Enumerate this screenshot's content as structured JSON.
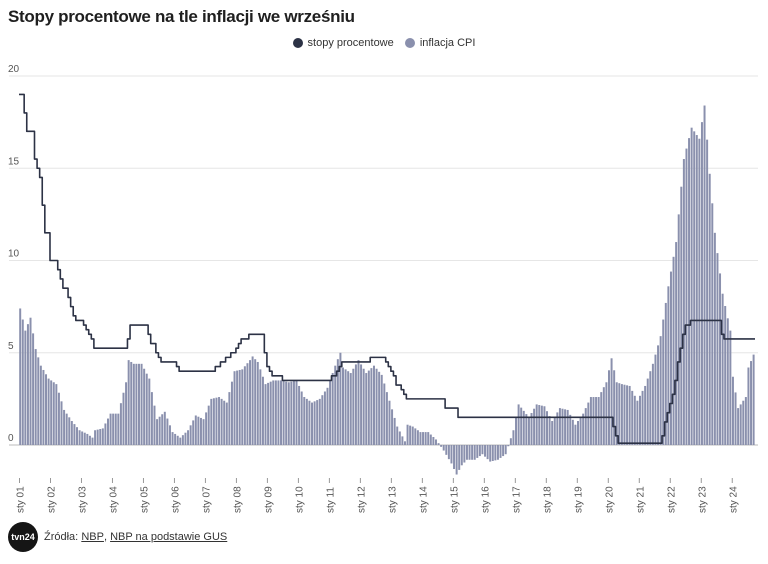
{
  "title": "Stopy procentowe na tle inflacji we wrześniu",
  "legend": {
    "rates_label": "stopy procentowe",
    "cpi_label": "inflacja CPI",
    "rates_color": "#2c3245",
    "cpi_color": "#8a90ad"
  },
  "footer": {
    "logo_text": "tvn24",
    "sources_label": "Źródła:",
    "link1": "NBP",
    "separator": ",",
    "link2": "NBP na podstawie GUS"
  },
  "chart_data": {
    "type": "bar+line",
    "title": "Stopy procentowe na tle inflacji we wrześniu",
    "xlabel": "",
    "ylabel": "",
    "ylim": [
      -2,
      20
    ],
    "yticks": [
      0,
      5,
      10,
      15,
      20
    ],
    "grid": true,
    "legend_position": "top",
    "x_tick_labels": [
      "sty 01",
      "sty 02",
      "sty 03",
      "sty 04",
      "sty 05",
      "sty 06",
      "sty 07",
      "sty 08",
      "sty 09",
      "sty 10",
      "sty 11",
      "sty 12",
      "sty 13",
      "sty 14",
      "sty 15",
      "sty 16",
      "sty 17",
      "sty 18",
      "sty 19",
      "sty 20",
      "sty 21",
      "sty 22",
      "sty 23",
      "sty 24"
    ],
    "x_range": [
      "2001-01",
      "2024-09"
    ],
    "series": [
      {
        "name": "inflacja CPI",
        "kind": "bar",
        "color": "#8a90ad",
        "keypoints": [
          [
            "2001-01",
            7.4
          ],
          [
            "2001-03",
            6.2
          ],
          [
            "2001-05",
            6.9
          ],
          [
            "2001-07",
            5.2
          ],
          [
            "2001-09",
            4.3
          ],
          [
            "2001-12",
            3.6
          ],
          [
            "2002-03",
            3.3
          ],
          [
            "2002-06",
            1.9
          ],
          [
            "2002-09",
            1.3
          ],
          [
            "2002-12",
            0.8
          ],
          [
            "2003-03",
            0.6
          ],
          [
            "2003-05",
            0.4
          ],
          [
            "2003-06",
            0.8
          ],
          [
            "2003-09",
            0.9
          ],
          [
            "2003-12",
            1.7
          ],
          [
            "2004-03",
            1.7
          ],
          [
            "2004-06",
            3.4
          ],
          [
            "2004-07",
            4.6
          ],
          [
            "2004-09",
            4.4
          ],
          [
            "2004-12",
            4.4
          ],
          [
            "2005-03",
            3.6
          ],
          [
            "2005-06",
            1.4
          ],
          [
            "2005-09",
            1.8
          ],
          [
            "2005-12",
            0.7
          ],
          [
            "2006-03",
            0.4
          ],
          [
            "2006-06",
            0.8
          ],
          [
            "2006-09",
            1.6
          ],
          [
            "2006-12",
            1.4
          ],
          [
            "2007-03",
            2.5
          ],
          [
            "2007-06",
            2.6
          ],
          [
            "2007-09",
            2.3
          ],
          [
            "2007-12",
            4.0
          ],
          [
            "2008-03",
            4.1
          ],
          [
            "2008-06",
            4.6
          ],
          [
            "2008-07",
            4.8
          ],
          [
            "2008-09",
            4.5
          ],
          [
            "2008-12",
            3.3
          ],
          [
            "2009-03",
            3.5
          ],
          [
            "2009-06",
            3.5
          ],
          [
            "2009-09",
            3.4
          ],
          [
            "2009-12",
            3.5
          ],
          [
            "2010-03",
            2.6
          ],
          [
            "2010-06",
            2.3
          ],
          [
            "2010-09",
            2.5
          ],
          [
            "2010-12",
            3.1
          ],
          [
            "2011-03",
            4.3
          ],
          [
            "2011-05",
            5.0
          ],
          [
            "2011-06",
            4.2
          ],
          [
            "2011-09",
            3.9
          ],
          [
            "2011-12",
            4.6
          ],
          [
            "2012-03",
            3.9
          ],
          [
            "2012-06",
            4.3
          ],
          [
            "2012-09",
            3.8
          ],
          [
            "2012-12",
            2.4
          ],
          [
            "2013-03",
            1.0
          ],
          [
            "2013-06",
            0.2
          ],
          [
            "2013-07",
            1.1
          ],
          [
            "2013-09",
            1.0
          ],
          [
            "2013-12",
            0.7
          ],
          [
            "2014-03",
            0.7
          ],
          [
            "2014-06",
            0.3
          ],
          [
            "2014-09",
            -0.3
          ],
          [
            "2014-12",
            -1.0
          ],
          [
            "2015-02",
            -1.6
          ],
          [
            "2015-04",
            -1.1
          ],
          [
            "2015-06",
            -0.8
          ],
          [
            "2015-09",
            -0.8
          ],
          [
            "2015-12",
            -0.5
          ],
          [
            "2016-03",
            -0.9
          ],
          [
            "2016-06",
            -0.8
          ],
          [
            "2016-09",
            -0.5
          ],
          [
            "2016-12",
            0.8
          ],
          [
            "2017-02",
            2.2
          ],
          [
            "2017-06",
            1.5
          ],
          [
            "2017-09",
            2.2
          ],
          [
            "2017-12",
            2.1
          ],
          [
            "2018-03",
            1.3
          ],
          [
            "2018-06",
            2.0
          ],
          [
            "2018-09",
            1.9
          ],
          [
            "2018-12",
            1.1
          ],
          [
            "2019-03",
            1.7
          ],
          [
            "2019-06",
            2.6
          ],
          [
            "2019-09",
            2.6
          ],
          [
            "2019-12",
            3.4
          ],
          [
            "2020-02",
            4.7
          ],
          [
            "2020-04",
            3.4
          ],
          [
            "2020-06",
            3.3
          ],
          [
            "2020-09",
            3.2
          ],
          [
            "2020-12",
            2.4
          ],
          [
            "2021-03",
            3.2
          ],
          [
            "2021-06",
            4.4
          ],
          [
            "2021-09",
            5.9
          ],
          [
            "2021-12",
            8.6
          ],
          [
            "2022-03",
            11.0
          ],
          [
            "2022-06",
            15.5
          ],
          [
            "2022-09",
            17.2
          ],
          [
            "2022-12",
            16.6
          ],
          [
            "2023-02",
            18.4
          ],
          [
            "2023-04",
            14.7
          ],
          [
            "2023-06",
            11.5
          ],
          [
            "2023-09",
            8.2
          ],
          [
            "2023-12",
            6.2
          ],
          [
            "2024-01",
            3.7
          ],
          [
            "2024-03",
            2.0
          ],
          [
            "2024-06",
            2.6
          ],
          [
            "2024-07",
            4.2
          ],
          [
            "2024-09",
            4.9
          ]
        ]
      },
      {
        "name": "stopy procentowe",
        "kind": "step-line",
        "color": "#2c3245",
        "keypoints": [
          [
            "2001-01",
            19.0
          ],
          [
            "2001-03",
            18.0
          ],
          [
            "2001-04",
            17.0
          ],
          [
            "2001-06",
            17.0
          ],
          [
            "2001-07",
            15.5
          ],
          [
            "2001-08",
            15.0
          ],
          [
            "2001-09",
            14.5
          ],
          [
            "2001-10",
            13.0
          ],
          [
            "2001-11",
            11.5
          ],
          [
            "2001-12",
            11.5
          ],
          [
            "2002-01",
            10.0
          ],
          [
            "2002-03",
            10.0
          ],
          [
            "2002-04",
            9.5
          ],
          [
            "2002-05",
            9.0
          ],
          [
            "2002-06",
            8.5
          ],
          [
            "2002-07",
            8.5
          ],
          [
            "2002-08",
            8.0
          ],
          [
            "2002-09",
            7.5
          ],
          [
            "2002-10",
            7.0
          ],
          [
            "2002-11",
            6.75
          ],
          [
            "2002-12",
            6.75
          ],
          [
            "2003-02",
            6.5
          ],
          [
            "2003-03",
            6.25
          ],
          [
            "2003-04",
            6.0
          ],
          [
            "2003-05",
            5.75
          ],
          [
            "2003-06",
            5.25
          ],
          [
            "2004-06",
            5.25
          ],
          [
            "2004-07",
            5.75
          ],
          [
            "2004-08",
            6.5
          ],
          [
            "2005-02",
            6.5
          ],
          [
            "2005-03",
            6.0
          ],
          [
            "2005-04",
            5.5
          ],
          [
            "2005-06",
            5.0
          ],
          [
            "2005-07",
            4.75
          ],
          [
            "2005-08",
            4.5
          ],
          [
            "2006-01",
            4.5
          ],
          [
            "2006-02",
            4.25
          ],
          [
            "2006-03",
            4.0
          ],
          [
            "2007-04",
            4.0
          ],
          [
            "2007-05",
            4.25
          ],
          [
            "2007-07",
            4.5
          ],
          [
            "2007-09",
            4.75
          ],
          [
            "2007-11",
            5.0
          ],
          [
            "2008-01",
            5.25
          ],
          [
            "2008-02",
            5.5
          ],
          [
            "2008-03",
            5.75
          ],
          [
            "2008-06",
            6.0
          ],
          [
            "2008-11",
            6.0
          ],
          [
            "2008-12",
            5.0
          ],
          [
            "2009-01",
            4.25
          ],
          [
            "2009-02",
            4.0
          ],
          [
            "2009-03",
            3.75
          ],
          [
            "2009-07",
            3.5
          ],
          [
            "2011-01",
            3.5
          ],
          [
            "2011-02",
            3.75
          ],
          [
            "2011-04",
            4.0
          ],
          [
            "2011-05",
            4.25
          ],
          [
            "2011-06",
            4.5
          ],
          [
            "2012-05",
            4.75
          ],
          [
            "2012-11",
            4.5
          ],
          [
            "2012-12",
            4.25
          ],
          [
            "2013-01",
            4.0
          ],
          [
            "2013-02",
            3.75
          ],
          [
            "2013-03",
            3.25
          ],
          [
            "2013-05",
            3.0
          ],
          [
            "2013-06",
            2.75
          ],
          [
            "2013-07",
            2.5
          ],
          [
            "2014-10",
            2.0
          ],
          [
            "2015-03",
            1.5
          ],
          [
            "2020-03",
            1.0
          ],
          [
            "2020-04",
            0.5
          ],
          [
            "2020-05",
            0.1
          ],
          [
            "2021-10",
            0.5
          ],
          [
            "2021-11",
            1.25
          ],
          [
            "2021-12",
            1.75
          ],
          [
            "2022-01",
            2.25
          ],
          [
            "2022-02",
            2.75
          ],
          [
            "2022-03",
            3.5
          ],
          [
            "2022-04",
            4.5
          ],
          [
            "2022-05",
            5.25
          ],
          [
            "2022-06",
            6.0
          ],
          [
            "2022-07",
            6.5
          ],
          [
            "2022-09",
            6.75
          ],
          [
            "2023-09",
            6.0
          ],
          [
            "2023-10",
            5.75
          ],
          [
            "2024-09",
            5.75
          ]
        ]
      }
    ]
  }
}
